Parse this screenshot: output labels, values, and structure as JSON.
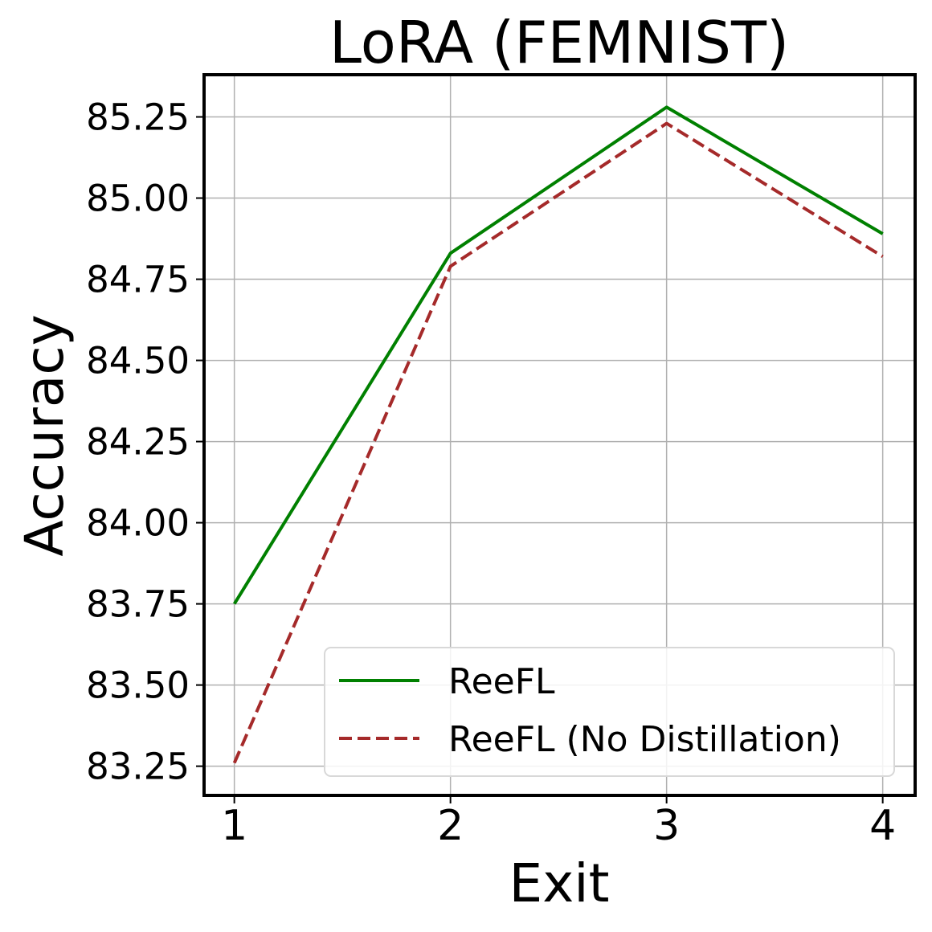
{
  "chart_data": {
    "type": "line",
    "title": "LoRA (FEMNIST)",
    "xlabel": "Exit",
    "ylabel": "Accuracy",
    "x": [
      1,
      2,
      3,
      4
    ],
    "x_tick_labels": [
      "1",
      "2",
      "3",
      "4"
    ],
    "y_ticks": [
      83.25,
      83.5,
      83.75,
      84.0,
      84.25,
      84.5,
      84.75,
      85.0,
      85.25
    ],
    "y_tick_labels": [
      "83.25",
      "83.50",
      "83.75",
      "84.00",
      "84.25",
      "84.50",
      "84.75",
      "85.00",
      "85.25"
    ],
    "xlim": [
      0.86,
      4.15
    ],
    "ylim": [
      83.16,
      85.38
    ],
    "grid": true,
    "legend_position": "lower-right",
    "series": [
      {
        "name": "ReeFL",
        "values": [
          83.75,
          84.83,
          85.28,
          84.89
        ],
        "color": "#008000",
        "style": "solid"
      },
      {
        "name": "ReeFL (No Distillation)",
        "values": [
          83.26,
          84.79,
          85.23,
          84.82
        ],
        "color": "#a52a2a",
        "style": "dashed"
      }
    ]
  }
}
